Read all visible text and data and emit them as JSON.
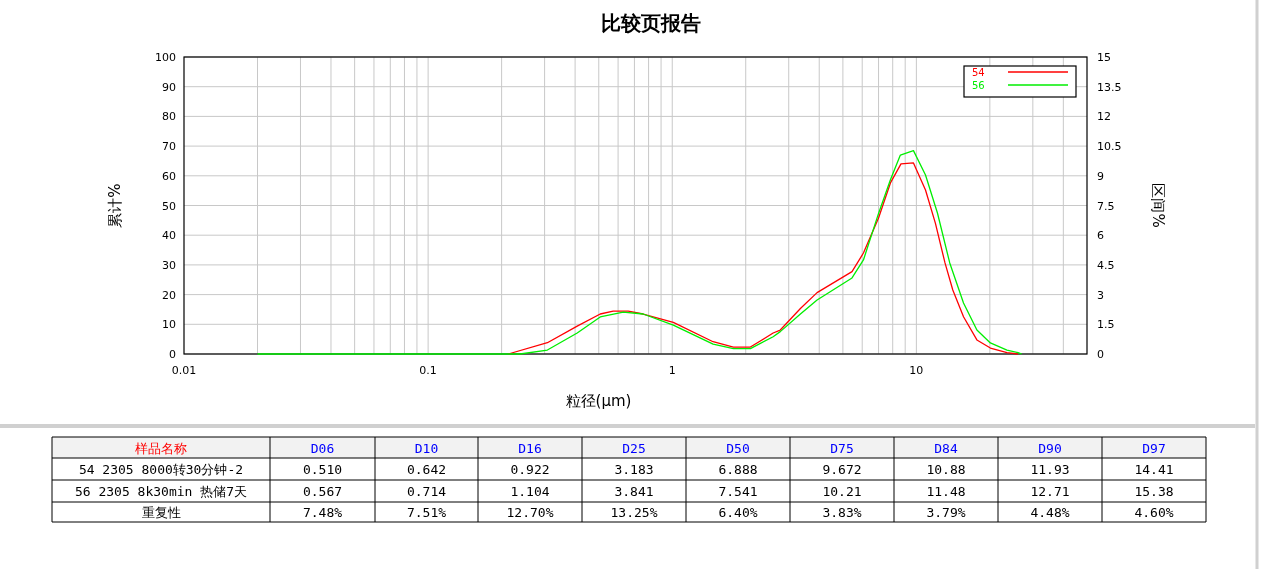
{
  "chart_data": {
    "type": "line",
    "title": "比较页报告",
    "xlabel": "粒径(μm)",
    "ylabel": "累计%",
    "y2label": "区间%",
    "log": "x",
    "xlim": [
      0.01,
      50
    ],
    "xticks": [
      0.01,
      0.1,
      1,
      10
    ],
    "ylim": [
      0,
      100
    ],
    "yticks": [
      0,
      10,
      20,
      30,
      40,
      50,
      60,
      70,
      80,
      90,
      100
    ],
    "y2lim": [
      0,
      15
    ],
    "y2ticks": [
      0,
      1.5,
      3,
      4.5,
      6,
      7.5,
      9,
      10.5,
      12,
      13.5,
      15
    ],
    "grid": true,
    "legend": "top right",
    "series": [
      {
        "name": "54",
        "color": "#ff0000",
        "axis": "y2",
        "x": [
          0.213,
          0.308,
          0.408,
          0.507,
          0.573,
          0.66,
          0.76,
          1.01,
          1.47,
          1.78,
          2.09,
          2.59,
          2.77,
          3.35,
          3.92,
          5.45,
          6.07,
          7.0,
          7.83,
          8.65,
          9.73,
          10.9,
          11.97,
          13.1,
          14.1,
          15.6,
          17.7,
          20.1,
          23.5,
          26.1
        ],
        "values": [
          0,
          0.57,
          1.41,
          2.02,
          2.17,
          2.17,
          2.02,
          1.6,
          0.62,
          0.35,
          0.35,
          1.06,
          1.21,
          2.3,
          3.1,
          4.16,
          5.1,
          6.87,
          8.64,
          9.6,
          9.65,
          8.28,
          6.6,
          4.6,
          3.23,
          1.88,
          0.71,
          0.3,
          0.07,
          0
        ]
      },
      {
        "name": "56",
        "color": "#00ee00",
        "axis": "y2",
        "x": [
          0.02,
          0.238,
          0.308,
          0.408,
          0.507,
          0.63,
          0.76,
          1.01,
          1.47,
          1.78,
          2.09,
          2.59,
          2.77,
          3.35,
          3.92,
          5.45,
          6.07,
          7.0,
          7.83,
          8.6,
          9.73,
          10.9,
          12.2,
          13.7,
          15.6,
          17.7,
          20.1,
          23.5,
          26.1,
          27
        ],
        "values": [
          0,
          0,
          0.2,
          1.06,
          1.87,
          2.12,
          2.02,
          1.46,
          0.5,
          0.27,
          0.27,
          0.87,
          1.13,
          2.02,
          2.73,
          3.84,
          4.75,
          7.1,
          8.8,
          10.05,
          10.27,
          9.04,
          7.12,
          4.6,
          2.58,
          1.21,
          0.56,
          0.2,
          0.07,
          0
        ]
      }
    ],
    "annotations": [
      "样品名称",
      "D06",
      "D10",
      "D16",
      "D25",
      "D50",
      "D75",
      "D84",
      "D90",
      "D97",
      "54  2305 8000转30分钟-2",
      "0.510",
      "0.642",
      "0.922",
      "3.183",
      "6.888",
      "9.672",
      "10.88",
      "11.93",
      "14.41",
      "56  2305 8k30min 热储7天",
      "0.567",
      "0.714",
      "1.104",
      "3.841",
      "7.541",
      "10.21",
      "11.48",
      "12.71",
      "15.38",
      "重复性",
      "7.48%",
      "7.51%",
      "12.70%",
      "13.25%",
      "6.40%",
      "3.83%",
      "3.79%",
      "4.48%",
      "4.60%"
    ]
  }
}
